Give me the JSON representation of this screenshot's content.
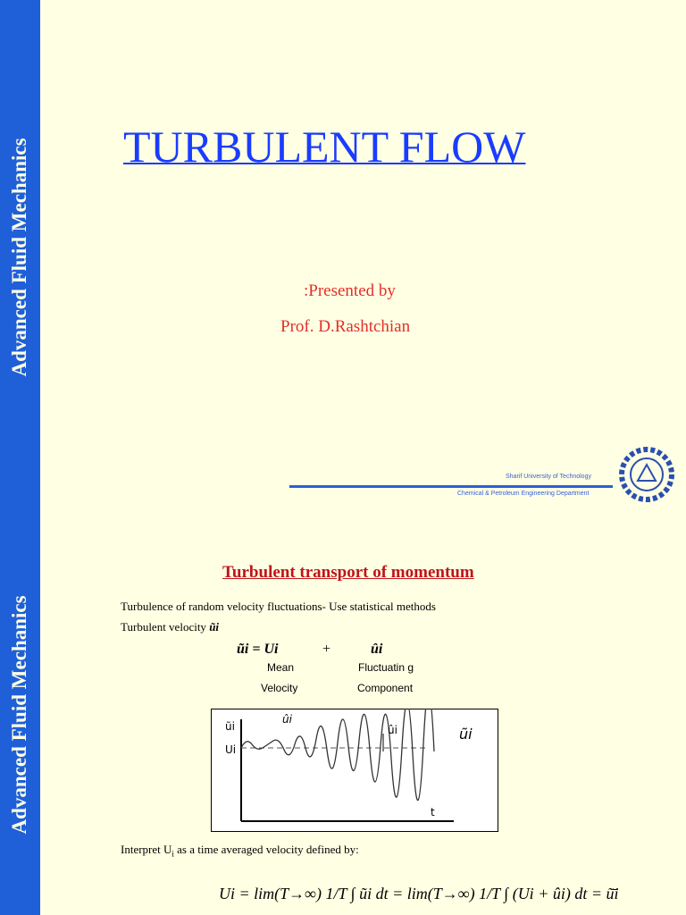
{
  "slides": [
    {
      "sidebar": "Advanced Fluid Mechanics",
      "title": "TURBULENT FLOW",
      "presented_by": ":Presented by",
      "presenter": "Prof. D.Rashtchian",
      "footer": {
        "university": "Sharif University of Technology",
        "department": "Chemical & Petroleum Engineering Department"
      }
    },
    {
      "sidebar": "Advanced Fluid Mechanics",
      "heading": "Turbulent transport of momentum",
      "line1": "Turbulence of random velocity fluctuations- Use statistical methods",
      "line2": "Turbulent velocity",
      "line2_symbol": "ũi",
      "equation": {
        "lhs": "ũi = Ui",
        "plus": "+",
        "rhs": "ûi",
        "mean": "Mean",
        "velocity": "Velocity",
        "fluct": "Fluctuatin g",
        "component": "Component"
      },
      "graph": {
        "y_label": "ũi",
        "hat_label": "ûi",
        "hat_label2": "ûi",
        "tilde_label": "ũi",
        "mean_label": "Ui",
        "x_label": "t"
      },
      "interpret": {
        "before": "Interpret U",
        "sub": "i",
        "after": " as a time averaged velocity defined by:"
      },
      "formula": "Ui = lim(T→∞) 1/T ∫ ũi dt = lim(T→∞) 1/T ∫ (Ui + ûi) dt = ũ̄i"
    }
  ]
}
